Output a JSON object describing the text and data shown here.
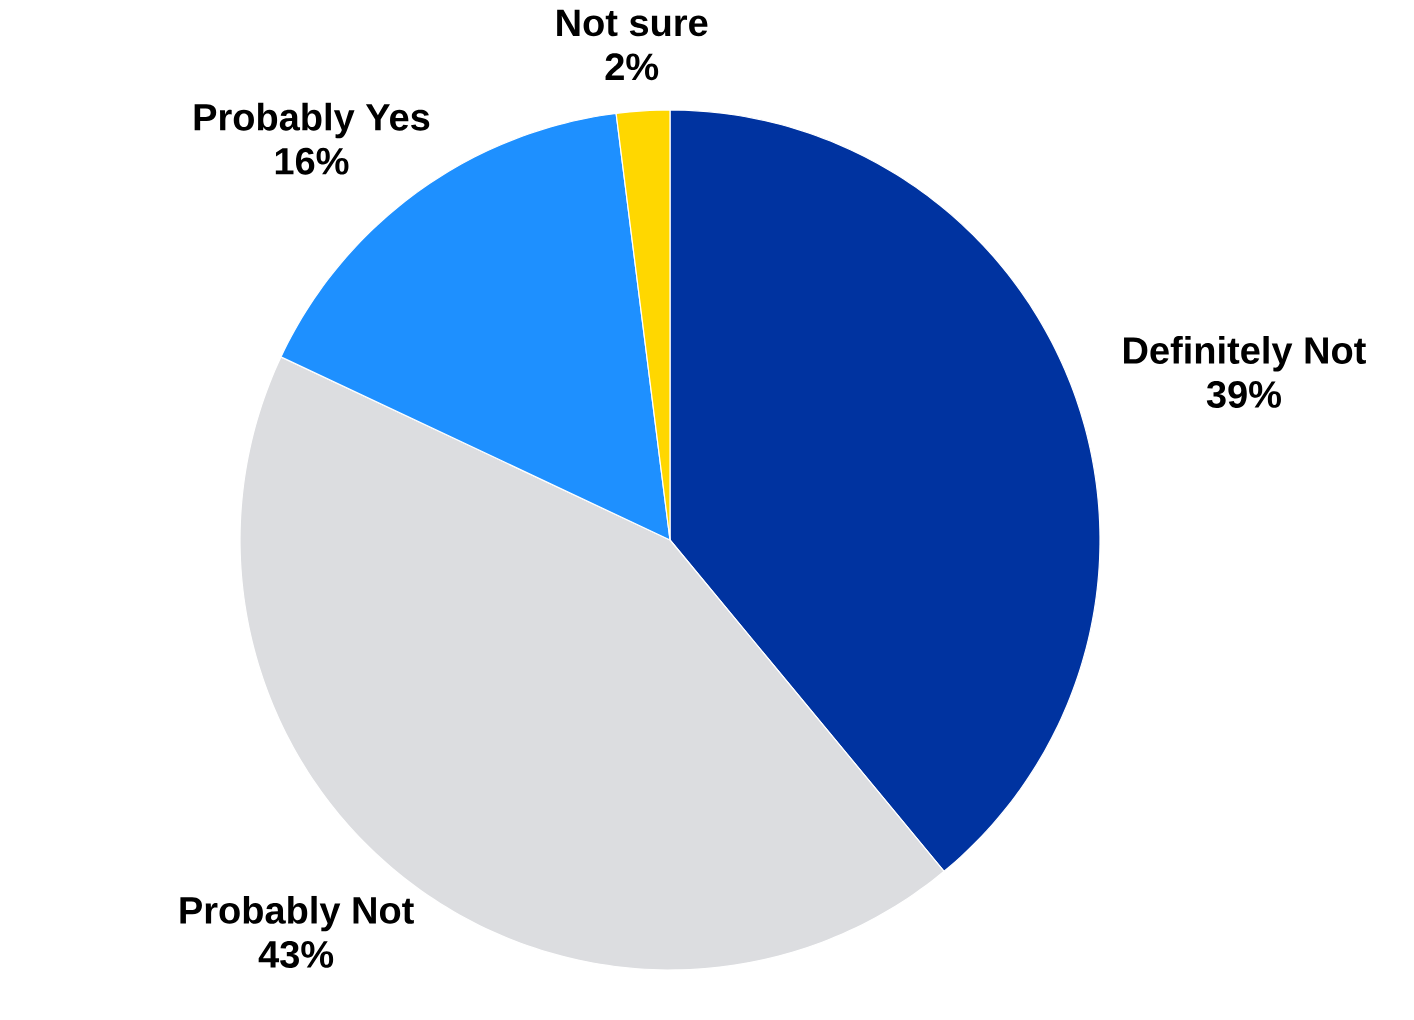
{
  "chart_data": {
    "type": "pie",
    "categories": [
      "Definitely Not",
      "Probably Not",
      "Probably Yes",
      "Not sure"
    ],
    "values": [
      39,
      43,
      16,
      2
    ],
    "value_labels": [
      "39%",
      "43%",
      "16%",
      "2%"
    ],
    "colors": [
      "#0033a0",
      "#dcdde0",
      "#1e90ff",
      "#ffd700"
    ]
  }
}
